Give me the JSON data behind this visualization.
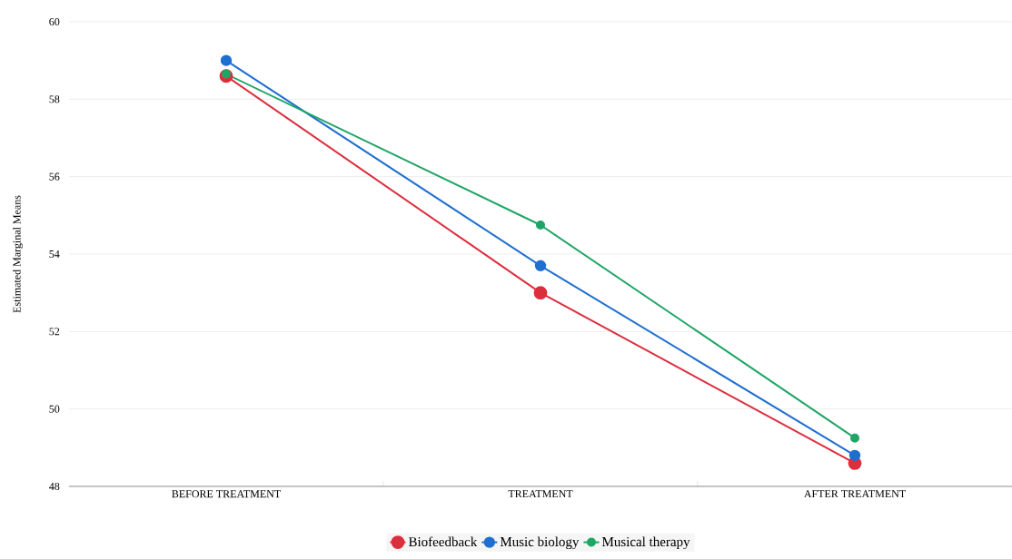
{
  "chart_data": {
    "type": "line",
    "ylabel": "Estimated Marginal Means",
    "categories": [
      "BEFORE TREATMENT",
      "TREATMENT",
      "AFTER TREATMENT"
    ],
    "series": [
      {
        "name": "Biofeedback",
        "color": "#dc2f3e",
        "values": [
          58.6,
          53.0,
          48.6
        ]
      },
      {
        "name": "Music biology",
        "color": "#1f6fd0",
        "values": [
          59.0,
          53.7,
          48.8
        ]
      },
      {
        "name": "Musical therapy",
        "color": "#1fa565",
        "values": [
          58.65,
          54.75,
          49.25
        ]
      }
    ],
    "ylim": [
      48,
      60
    ],
    "yticks": [
      48,
      50,
      52,
      54,
      56,
      58,
      60
    ],
    "grid": "y",
    "legend": "bottom",
    "marker": "circle",
    "line_style": "solid"
  }
}
